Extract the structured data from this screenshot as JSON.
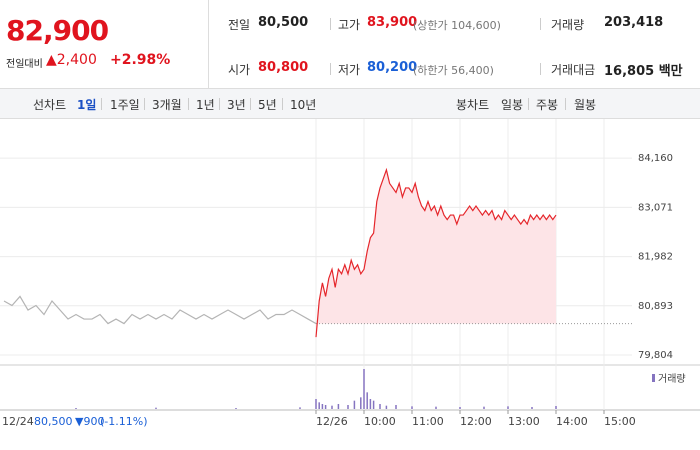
{
  "header": {
    "price": "82,900",
    "change_label": "전일대비",
    "change": "▲2,400",
    "rate": "+2.98%"
  },
  "stats": [
    [
      {
        "label": "전일",
        "value": "80,500"
      },
      {
        "label": "고가",
        "value": "83,900",
        "note": "(상한가 104,600)"
      },
      {
        "label": "거래량",
        "value": "203,418"
      }
    ],
    [
      {
        "label": "시가",
        "value": "80,800"
      },
      {
        "label": "저가",
        "value": "80,200",
        "note": "(하한가 56,400)"
      },
      {
        "label": "거래대금",
        "value": "16,805 백만"
      }
    ]
  ],
  "tabs": {
    "line_label": "선차트",
    "periods": [
      "1일",
      "1주일",
      "3개월",
      "1년",
      "3년",
      "5년",
      "10년"
    ],
    "candle_label": "봉차트",
    "candles": [
      "일봉",
      "주봉",
      "월봉"
    ]
  },
  "footer": {
    "date": "12/24",
    "close": "80,500",
    "change": "▼900",
    "rate": "(-1.11%)"
  },
  "chart_data": [
    {
      "type": "line",
      "xlim": [
        -395,
        395
      ],
      "xticks": [
        {
          "value": 0,
          "label": "12/26"
        },
        {
          "value": 60,
          "label": "10:00"
        },
        {
          "value": 120,
          "label": "11:00"
        },
        {
          "value": 180,
          "label": "12:00"
        },
        {
          "value": 240,
          "label": "13:00"
        },
        {
          "value": 300,
          "label": "14:00"
        },
        {
          "value": 360,
          "label": "15:00"
        }
      ],
      "ylim": [
        79650,
        84870
      ],
      "yticks": [
        {
          "value": 79804,
          "label": "79,804"
        },
        {
          "value": 80893,
          "label": "80,893"
        },
        {
          "value": 81982,
          "label": "81,982"
        },
        {
          "value": 83071,
          "label": "83,071"
        },
        {
          "value": 84160,
          "label": "84,160"
        }
      ],
      "grid": true,
      "prev_close": 80500,
      "fill_color": "#fde4e7",
      "series": [
        {
          "color": "#b4b4b4",
          "x": [
            -390,
            -380,
            -370,
            -360,
            -350,
            -340,
            -330,
            -320,
            -310,
            -300,
            -290,
            -280,
            -270,
            -260,
            -250,
            -240,
            -230,
            -220,
            -210,
            -200,
            -190,
            -180,
            -170,
            -160,
            -150,
            -140,
            -130,
            -120,
            -110,
            -100,
            -90,
            -80,
            -70,
            -60,
            -50,
            -40,
            -30,
            -20,
            -10,
            0
          ],
          "values": [
            81000,
            80900,
            81100,
            80800,
            80900,
            80700,
            81000,
            80800,
            80600,
            80700,
            80600,
            80600,
            80700,
            80500,
            80600,
            80500,
            80700,
            80600,
            80700,
            80600,
            80700,
            80600,
            80800,
            80700,
            80600,
            80700,
            80600,
            80700,
            80800,
            80700,
            80600,
            80700,
            80800,
            80600,
            80700,
            80700,
            80800,
            80700,
            80600,
            80500
          ]
        },
        {
          "color": "#e5262b",
          "fill": true,
          "x": [
            0,
            4,
            8,
            12,
            16,
            20,
            24,
            28,
            32,
            36,
            40,
            44,
            48,
            52,
            56,
            60,
            64,
            68,
            72,
            76,
            80,
            84,
            88,
            92,
            96,
            100,
            104,
            108,
            112,
            116,
            120,
            124,
            128,
            132,
            136,
            140,
            144,
            148,
            152,
            156,
            160,
            164,
            168,
            172,
            176,
            180,
            184,
            188,
            192,
            196,
            200,
            204,
            208,
            212,
            216,
            220,
            224,
            228,
            232,
            236,
            240,
            244,
            248,
            252,
            256,
            260,
            264,
            268,
            272,
            276,
            280,
            284,
            288,
            292,
            296,
            300
          ],
          "values": [
            80200,
            81000,
            81400,
            81100,
            81500,
            81700,
            81300,
            81700,
            81600,
            81800,
            81600,
            81900,
            81700,
            81800,
            81600,
            81700,
            82100,
            82400,
            82500,
            83200,
            83500,
            83700,
            83900,
            83600,
            83500,
            83400,
            83600,
            83300,
            83500,
            83500,
            83400,
            83600,
            83300,
            83100,
            83000,
            83200,
            83000,
            83100,
            82900,
            83100,
            82900,
            82800,
            82900,
            82900,
            82700,
            82900,
            82900,
            83000,
            83100,
            83000,
            83100,
            83000,
            82900,
            83000,
            82900,
            83000,
            82800,
            82900,
            82800,
            83000,
            82900,
            82800,
            82900,
            82800,
            82700,
            82800,
            82700,
            82900,
            82800,
            82900,
            82800,
            82900,
            82800,
            82900,
            82800,
            82900
          ]
        }
      ]
    },
    {
      "type": "bar",
      "series": [
        {
          "name": "거래량",
          "color": "#8574c0",
          "x": [
            -300,
            -200,
            -100,
            -20,
            0,
            4,
            8,
            12,
            20,
            28,
            40,
            48,
            56,
            60,
            64,
            68,
            72,
            80,
            88,
            100,
            120,
            150,
            180,
            210,
            240,
            270,
            300
          ],
          "values": [
            300,
            400,
            300,
            500,
            3000,
            2000,
            1500,
            1200,
            1000,
            1500,
            1200,
            2500,
            3500,
            12000,
            5000,
            3000,
            2500,
            1500,
            1000,
            1200,
            800,
            700,
            600,
            700,
            800,
            600,
            900
          ]
        }
      ]
    }
  ]
}
